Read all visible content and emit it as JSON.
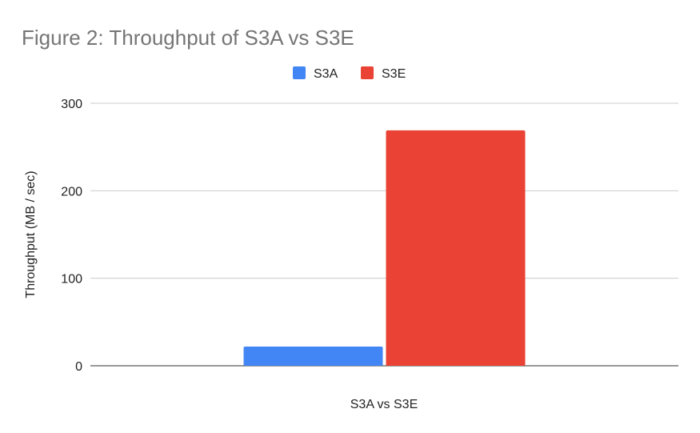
{
  "chart_data": {
    "type": "bar",
    "title": "Figure 2: Throughput of S3A vs S3E",
    "xlabel": "S3A vs S3E",
    "ylabel": "Throughput (MB / sec)",
    "categories": [
      ""
    ],
    "series": [
      {
        "name": "S3A",
        "color": "#4285f4",
        "values": [
          22
        ]
      },
      {
        "name": "S3E",
        "color": "#ea4335",
        "values": [
          269
        ]
      }
    ],
    "ylim": [
      0,
      300
    ],
    "yticks": [
      0,
      100,
      200,
      300
    ],
    "grid": true,
    "legend_position": "top-center"
  }
}
